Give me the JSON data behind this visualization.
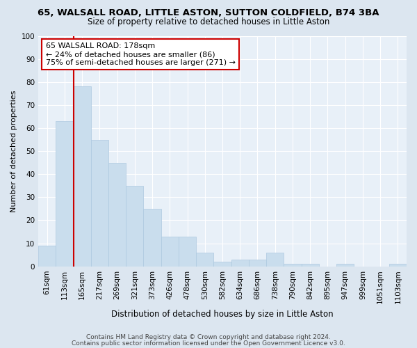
{
  "title1": "65, WALSALL ROAD, LITTLE ASTON, SUTTON COLDFIELD, B74 3BA",
  "title2": "Size of property relative to detached houses in Little Aston",
  "xlabel": "Distribution of detached houses by size in Little Aston",
  "ylabel": "Number of detached properties",
  "footer1": "Contains HM Land Registry data © Crown copyright and database right 2024.",
  "footer2": "Contains public sector information licensed under the Open Government Licence v3.0.",
  "bin_labels": [
    "61sqm",
    "113sqm",
    "165sqm",
    "217sqm",
    "269sqm",
    "321sqm",
    "373sqm",
    "426sqm",
    "478sqm",
    "530sqm",
    "582sqm",
    "634sqm",
    "686sqm",
    "738sqm",
    "790sqm",
    "842sqm",
    "895sqm",
    "947sqm",
    "999sqm",
    "1051sqm",
    "1103sqm"
  ],
  "bar_heights": [
    9,
    63,
    78,
    55,
    45,
    35,
    25,
    13,
    13,
    6,
    2,
    3,
    3,
    6,
    1,
    1,
    0,
    1,
    0,
    0,
    1
  ],
  "bar_color": "#c9dded",
  "bar_edge_color": "#adc9e0",
  "vline_x_bar_index": 2,
  "vline_color": "#cc0000",
  "annotation_line1": "65 WALSALL ROAD: 178sqm",
  "annotation_line2": "← 24% of detached houses are smaller (86)",
  "annotation_line3": "75% of semi-detached houses are larger (271) →",
  "annotation_box_color": "#ffffff",
  "annotation_box_edge": "#cc0000",
  "ylim": [
    0,
    100
  ],
  "yticks": [
    0,
    10,
    20,
    30,
    40,
    50,
    60,
    70,
    80,
    90,
    100
  ],
  "bg_color": "#dce6f0",
  "plot_bg_color": "#e8f0f8",
  "grid_color": "#ffffff",
  "title1_fontsize": 9.5,
  "title2_fontsize": 8.5,
  "xlabel_fontsize": 8.5,
  "ylabel_fontsize": 8,
  "tick_fontsize": 7.5,
  "annotation_fontsize": 8,
  "footer_fontsize": 6.5
}
